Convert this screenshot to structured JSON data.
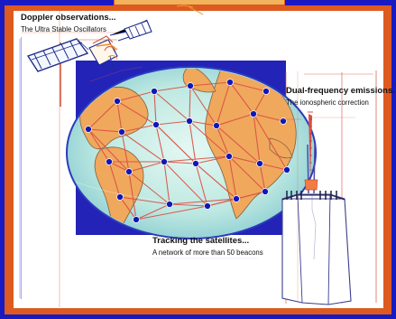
{
  "labels": {
    "doppler_title": "Doppler observations...",
    "doppler_sub": "The Ultra Stable Oscillators",
    "dual_title": "Dual-frequency emissions.",
    "dual_sub": "The ionospheric correction",
    "tracking_title": "Tracking the satellites...",
    "tracking_sub": "A network of more than 50 beacons"
  },
  "colors": {
    "frame_blue": "#1a1ac2",
    "frame_orange": "#dd5a20",
    "ocean": "#b8e7de",
    "land": "#f0a85d",
    "beacon": "#1017b8",
    "network_line": "#d94f43",
    "globe_panel": "#2323b7"
  },
  "icons": [
    "satellite-icon",
    "globe-icon",
    "beacon-icon",
    "antenna-icon"
  ]
}
